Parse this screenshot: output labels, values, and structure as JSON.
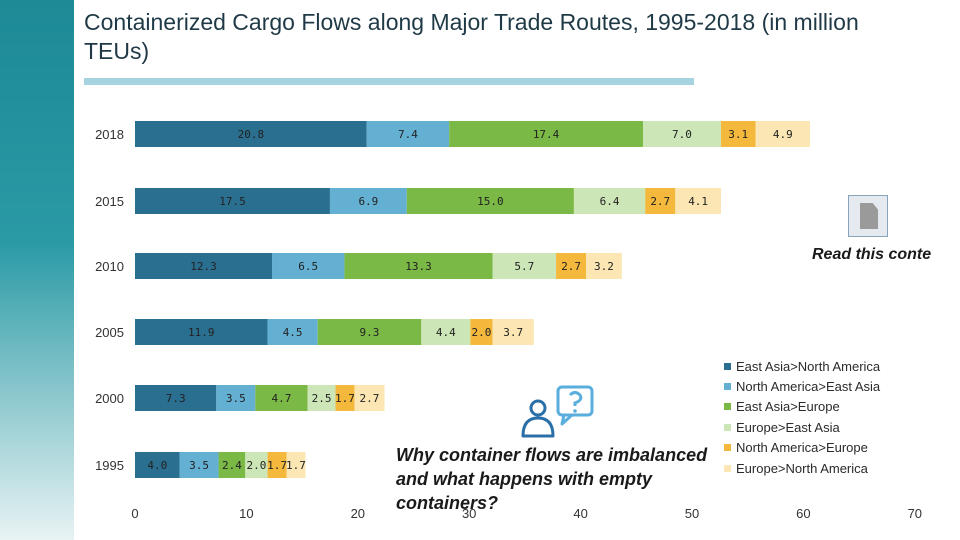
{
  "title": "Containerized Cargo Flows along Major Trade Routes, 1995-2018 (in million TEUs)",
  "read_link": "Read this conte",
  "why_text": "Why container flows are imbalanced and what happens with empty containers?",
  "icons": {
    "document": "document-icon",
    "question": "person-question-icon"
  },
  "colors": {
    "strip": "#1d8a96",
    "rule": "#a6d3e0"
  },
  "chart_data": {
    "type": "bar",
    "orientation": "horizontal",
    "stacked": true,
    "categories": [
      "2018",
      "2015",
      "2010",
      "2005",
      "2000",
      "1995"
    ],
    "series": [
      {
        "name": "East Asia>North America",
        "color": "#2a6f8f",
        "values": [
          20.8,
          17.5,
          12.3,
          11.9,
          7.3,
          4.0
        ],
        "labels": [
          "20.8",
          "17.5",
          "12.3",
          "11.9",
          "7.3",
          "4.0"
        ]
      },
      {
        "name": "North America>East Asia",
        "color": "#64b0d2",
        "values": [
          7.4,
          6.9,
          6.5,
          4.5,
          3.5,
          3.5
        ],
        "labels": [
          "7.4",
          "6.9",
          "6.5",
          "4.5",
          "3.5",
          "3.5"
        ]
      },
      {
        "name": "East Asia>Europe",
        "color": "#7bb946",
        "values": [
          17.4,
          15.0,
          13.3,
          9.3,
          4.7,
          2.4
        ],
        "labels": [
          "17.4",
          "15.0",
          "13.3",
          "9.3",
          "4.7",
          "2.4"
        ]
      },
      {
        "name": "Europe>East Asia",
        "color": "#cde6b7",
        "values": [
          7.0,
          6.4,
          5.7,
          4.4,
          2.5,
          2.0
        ],
        "labels": [
          "7.0",
          "6.4",
          "5.7",
          "4.4",
          "2.5",
          "2.0"
        ]
      },
      {
        "name": "North America>Europe",
        "color": "#f3b83c",
        "values": [
          3.1,
          2.7,
          2.7,
          2.0,
          1.7,
          1.7
        ],
        "labels": [
          "3.1",
          "2.7",
          "2.7",
          "2.0",
          "1.7",
          "1.7"
        ]
      },
      {
        "name": "Europe>North America",
        "color": "#fbe6b4",
        "values": [
          4.9,
          4.1,
          3.2,
          3.7,
          2.7,
          1.7
        ],
        "labels": [
          "4.9",
          "4.1",
          "3.2",
          "3.7",
          "2.7",
          "1.7"
        ]
      }
    ],
    "xlim": [
      0,
      70
    ],
    "xticks": [
      "0",
      "10",
      "20",
      "30",
      "40",
      "50",
      "60",
      "70"
    ],
    "grid": false,
    "legend_position": "right"
  }
}
